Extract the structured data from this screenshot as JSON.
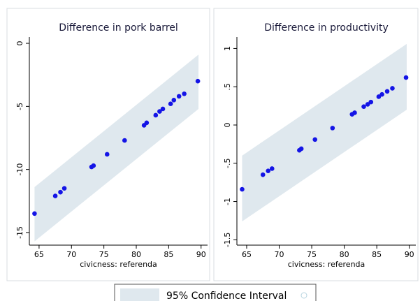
{
  "chart_data": [
    {
      "type": "scatter",
      "title": "Difference in pork barrel",
      "xlabel": "civicness: referenda",
      "ylabel": "",
      "xlim": [
        63.5,
        91
      ],
      "ylim": [
        -16,
        0.5
      ],
      "x_ticks": [
        65,
        70,
        75,
        80,
        85,
        90
      ],
      "y_ticks": [
        0,
        -5,
        -10,
        -15
      ],
      "band": {
        "name": "95% Confidence Interval",
        "x": [
          64.3,
          89.6
        ],
        "lower": [
          -15.7,
          -5.2
        ],
        "upper": [
          -11.4,
          -0.9
        ]
      },
      "points": [
        {
          "x": 64.3,
          "y": -13.5
        },
        {
          "x": 67.5,
          "y": -12.1
        },
        {
          "x": 68.3,
          "y": -11.8
        },
        {
          "x": 68.9,
          "y": -11.5
        },
        {
          "x": 73.1,
          "y": -9.8
        },
        {
          "x": 73.4,
          "y": -9.7
        },
        {
          "x": 75.5,
          "y": -8.8
        },
        {
          "x": 78.2,
          "y": -7.7
        },
        {
          "x": 81.2,
          "y": -6.5
        },
        {
          "x": 81.6,
          "y": -6.3
        },
        {
          "x": 83.0,
          "y": -5.7
        },
        {
          "x": 83.6,
          "y": -5.4
        },
        {
          "x": 84.1,
          "y": -5.2
        },
        {
          "x": 85.3,
          "y": -4.8
        },
        {
          "x": 85.8,
          "y": -4.5
        },
        {
          "x": 86.6,
          "y": -4.2
        },
        {
          "x": 87.4,
          "y": -4.0
        },
        {
          "x": 89.5,
          "y": -3.0
        }
      ]
    },
    {
      "type": "scatter",
      "title": "Difference in productivity",
      "xlabel": "civicness: referenda",
      "ylabel": "",
      "xlim": [
        63.5,
        91
      ],
      "ylim": [
        -1.57,
        1.15
      ],
      "x_ticks": [
        65,
        70,
        75,
        80,
        85,
        90
      ],
      "y_ticks": [
        1,
        0.5,
        0,
        -0.5,
        -1,
        -1.5
      ],
      "y_tick_labels": [
        "1",
        ".5",
        "0",
        "-.5",
        "-1",
        "-1.5"
      ],
      "band": {
        "name": "95% Confidence Interval",
        "x": [
          64.3,
          89.6
        ],
        "lower": [
          -1.26,
          0.2
        ],
        "upper": [
          -0.4,
          1.06
        ]
      },
      "points": [
        {
          "x": 64.3,
          "y": -0.84
        },
        {
          "x": 67.5,
          "y": -0.65
        },
        {
          "x": 68.3,
          "y": -0.6
        },
        {
          "x": 68.9,
          "y": -0.57
        },
        {
          "x": 73.1,
          "y": -0.33
        },
        {
          "x": 73.4,
          "y": -0.31
        },
        {
          "x": 75.5,
          "y": -0.19
        },
        {
          "x": 78.2,
          "y": -0.04
        },
        {
          "x": 81.2,
          "y": 0.14
        },
        {
          "x": 81.6,
          "y": 0.16
        },
        {
          "x": 83.0,
          "y": 0.24
        },
        {
          "x": 83.6,
          "y": 0.27
        },
        {
          "x": 84.1,
          "y": 0.3
        },
        {
          "x": 85.3,
          "y": 0.37
        },
        {
          "x": 85.8,
          "y": 0.4
        },
        {
          "x": 86.6,
          "y": 0.44
        },
        {
          "x": 87.4,
          "y": 0.48
        },
        {
          "x": 89.5,
          "y": 0.62
        }
      ]
    }
  ],
  "legend": {
    "items": [
      "95% Confidence Interval",
      ""
    ]
  },
  "colors": {
    "band": "#dfe8ee",
    "point": "#1414e6",
    "frame": "#000000",
    "panel_border": "#d8dde0",
    "legend_circle": "#b7d4e0"
  }
}
